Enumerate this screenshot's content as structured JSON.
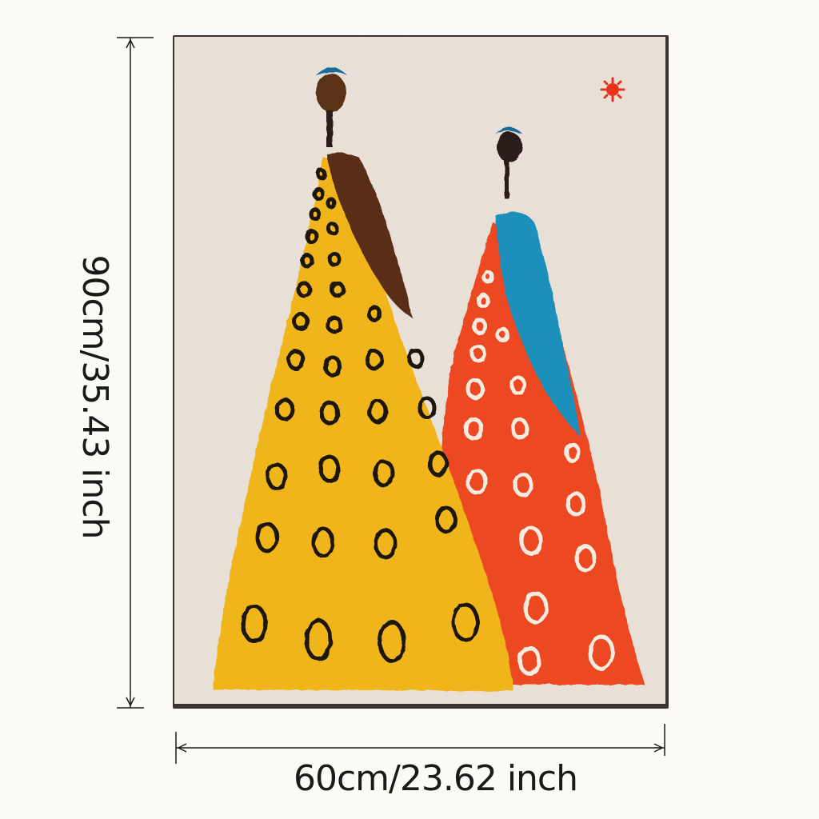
{
  "dimensions": {
    "width_label": "60cm/23.62 inch",
    "height_label": "90cm/35.43 inch"
  },
  "artwork": {
    "colors": {
      "background": "#ece4da",
      "yellow_dress": "#f1b51c",
      "red_dress": "#ec4a24",
      "brown_shawl": "#5a2f12",
      "blue_shawl": "#1f8fba",
      "head_dark": "#2a1e18",
      "head_brown": "#5a3317",
      "headband_blue": "#1b6c98",
      "sun_red": "#e8321c",
      "spots_black": "#1a1410",
      "spots_white": "#f4ece0"
    },
    "icons": [
      "sun-icon"
    ]
  }
}
